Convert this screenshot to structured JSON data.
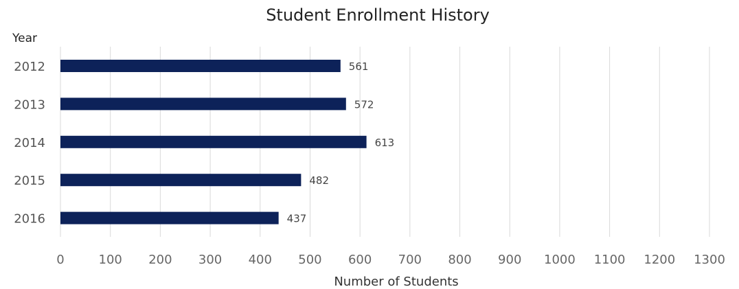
{
  "chart_data": {
    "type": "bar",
    "orientation": "horizontal",
    "title": "Student Enrollment History",
    "ylabel": "Year",
    "xlabel": "Number of Students",
    "categories": [
      "2012",
      "2013",
      "2014",
      "2015",
      "2016"
    ],
    "values": [
      561,
      572,
      613,
      482,
      437
    ],
    "xlim": [
      0,
      1300
    ],
    "x_ticks": [
      0,
      100,
      200,
      300,
      400,
      500,
      600,
      700,
      800,
      900,
      1000,
      1100,
      1200,
      1300
    ],
    "grid": true,
    "data_labels": true,
    "bar_color": "#0d2259"
  }
}
